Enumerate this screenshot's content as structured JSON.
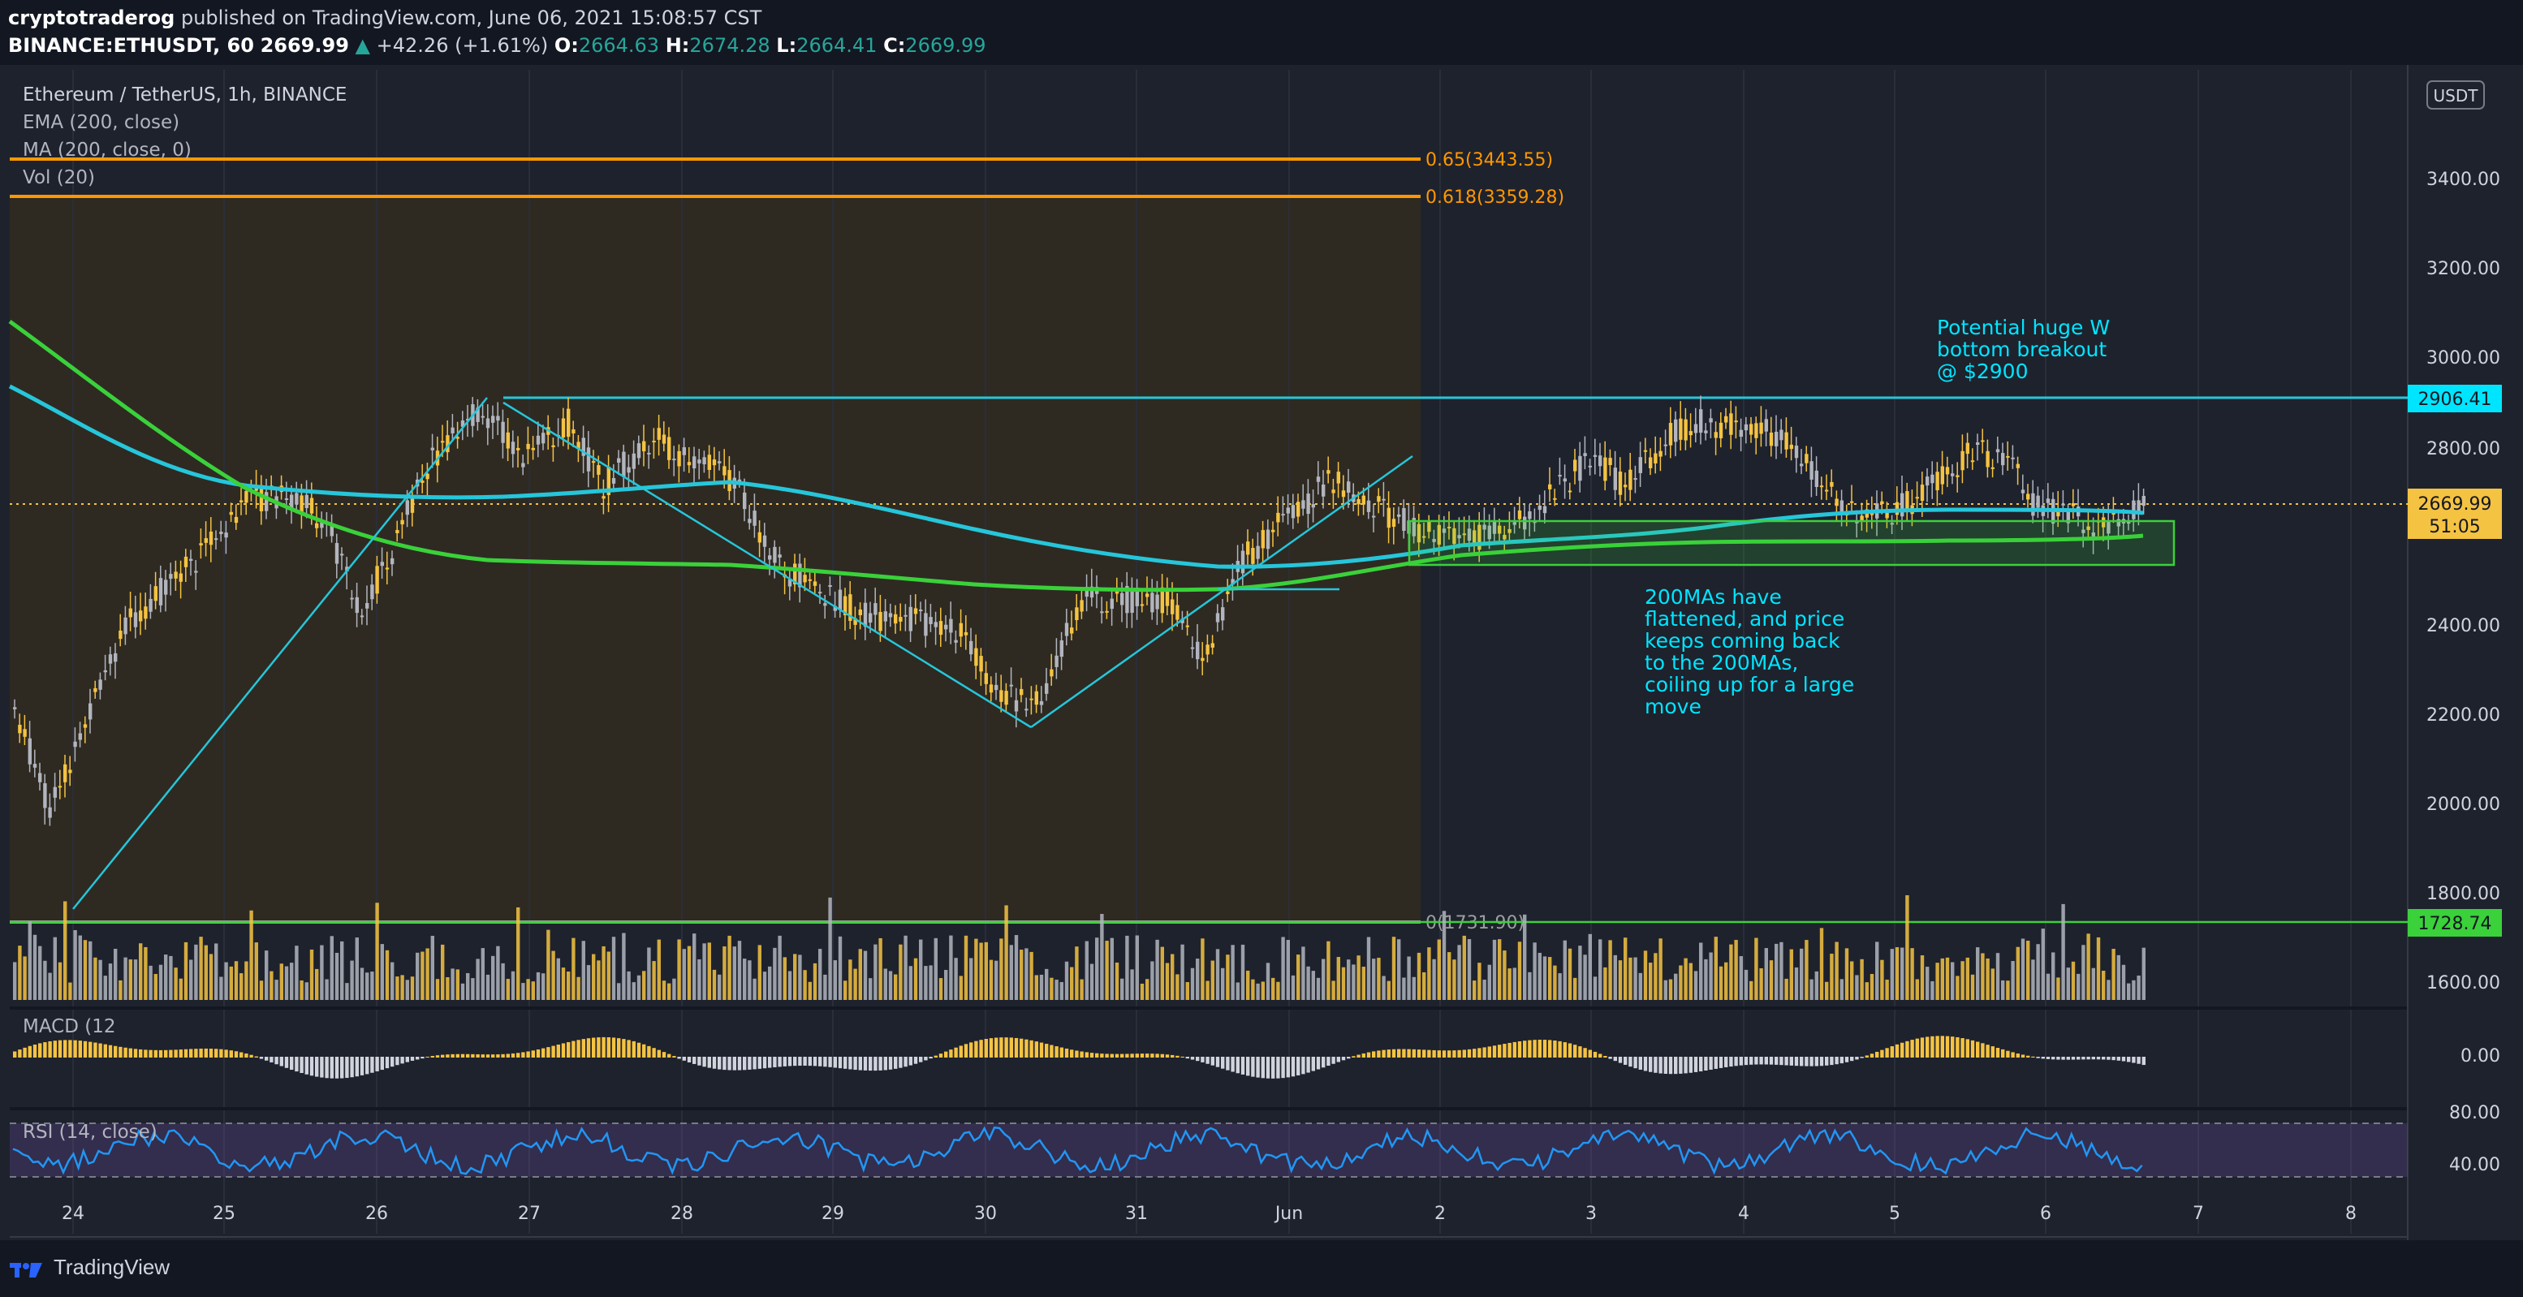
{
  "header": {
    "author": "cryptotraderog",
    "published_text": "published on TradingView.com, June 06, 2021 15:08:57 CST",
    "symbol": "BINANCE:ETHUSDT, 60",
    "last": "2669.99",
    "change": "+42.26 (+1.61%)",
    "o_label": "O:",
    "o": "2664.63",
    "h_label": "H:",
    "h": "2674.28",
    "l_label": "L:",
    "l": "2664.41",
    "c_label": "C:",
    "c": "2669.99"
  },
  "legend": {
    "title": "Ethereum / TetherUS, 1h, BINANCE",
    "ema": "EMA (200, close)",
    "ma": "MA (200, close, 0)",
    "vol": "Vol (20)",
    "macd": "MACD (12",
    "rsi": "RSI (14, close)"
  },
  "price_axis": {
    "currency": "USDT",
    "ticks": [
      "3400.00",
      "3200.00",
      "3000.00",
      "2800.00",
      "2400.00",
      "2200.00",
      "2000.00",
      "1800.00",
      "1600.00"
    ],
    "macd_ticks": [
      "0.00"
    ],
    "rsi_ticks": [
      "80.00",
      "40.00"
    ]
  },
  "price_labels": {
    "resistance": "2906.41",
    "last": "2669.99",
    "countdown": "51:05",
    "support": "1728.74"
  },
  "fib": {
    "level_065": "0.65(3443.55)",
    "level_0618": "0.618(3359.28)",
    "level_0": "0(1731.90)"
  },
  "time_axis": [
    "24",
    "25",
    "26",
    "27",
    "28",
    "29",
    "30",
    "31",
    "Jun",
    "2",
    "3",
    "4",
    "5",
    "6",
    "7",
    "8"
  ],
  "annotations": {
    "w_bottom": "Potential huge W\nbottom breakout\n@ $2900",
    "ma_note": "200MAs have\nflattened, and price\nkeeps coming back\nto the 200MAs,\ncoiling up for a large\nmove"
  },
  "colors": {
    "background": "#131722",
    "fib_orange": "#ff9800",
    "cyan": "#00e5ff",
    "ema": "#26c6da",
    "ma": "#3ad13a",
    "up": "#f5c342",
    "down": "#b2b5be"
  },
  "footer": {
    "brand": "TradingView",
    "logo_icon": "tradingview-logo-icon"
  }
}
